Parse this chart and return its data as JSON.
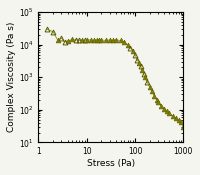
{
  "title": "",
  "xlabel": "Stress (Pa)",
  "ylabel": "Complex Viscosity (Pa s)",
  "xlim": [
    1,
    1000
  ],
  "ylim": [
    10,
    100000
  ],
  "marker_color": "#808000",
  "marker_edge_color": "#5a5a00",
  "line_color": "#909020",
  "background_color": "#f5f5f0",
  "stress_data": [
    1.5,
    2.0,
    2.5,
    3.0,
    3.5,
    4.0,
    5.0,
    6.0,
    7.0,
    8.0,
    9.0,
    10.0,
    12.0,
    14.0,
    16.0,
    18.0,
    20.0,
    25.0,
    30.0,
    35.0,
    40.0,
    50.0,
    60.0,
    70.0,
    80.0,
    90.0,
    100.0,
    110.0,
    120.0,
    130.0,
    140.0,
    150.0,
    160.0,
    180.0,
    200.0,
    220.0,
    250.0,
    280.0,
    300.0,
    350.0,
    400.0,
    450.0,
    500.0,
    600.0,
    700.0,
    800.0,
    900.0,
    1000.0
  ],
  "viscosity_data": [
    30000,
    25000,
    14000,
    16000,
    12000,
    13000,
    14500,
    14000,
    13500,
    14000,
    13500,
    14000,
    14000,
    13500,
    14000,
    13800,
    14000,
    13500,
    14000,
    13500,
    14000,
    13500,
    12000,
    10000,
    8000,
    6500,
    5000,
    3500,
    2800,
    2200,
    1700,
    1300,
    1000,
    700,
    500,
    380,
    270,
    200,
    170,
    130,
    110,
    90,
    80,
    65,
    55,
    48,
    42,
    30
  ],
  "open_indices": [
    0,
    1,
    3,
    4,
    7,
    8,
    10,
    24,
    26,
    27,
    29,
    31,
    33
  ],
  "fontsize_label": 6.5,
  "fontsize_tick": 5.5
}
